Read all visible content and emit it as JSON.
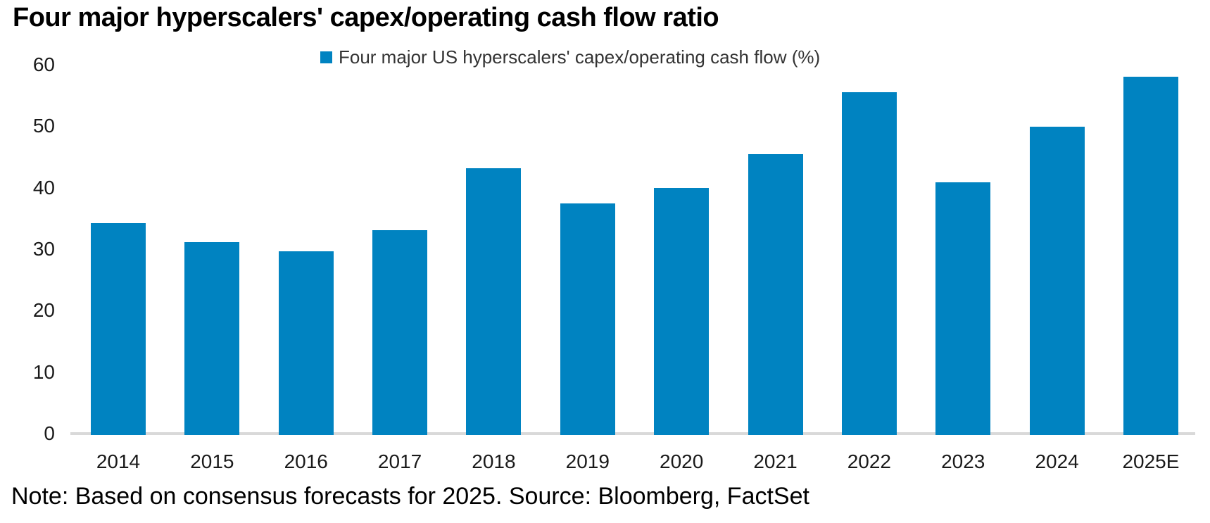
{
  "title": "Four major hyperscalers' capex/operating cash flow ratio",
  "legend": {
    "label": "Four major US hyperscalers' capex/operating cash flow (%)"
  },
  "note": "Note: Based on consensus forecasts for 2025. Source: Bloomberg, FactSet",
  "colors": {
    "bar": "#0083C1",
    "axis_line": "#D9D9D9",
    "tick_text": "#1A1A1A",
    "legend_text": "#333333",
    "title_text": "#000000"
  },
  "chart_data": {
    "type": "bar",
    "title": "Four major hyperscalers' capex/operating cash flow ratio",
    "legend_entries": [
      "Four major US hyperscalers' capex/operating cash flow (%)"
    ],
    "legend_position": "top-center",
    "categories": [
      "2014",
      "2015",
      "2016",
      "2017",
      "2018",
      "2019",
      "2020",
      "2021",
      "2022",
      "2023",
      "2024",
      "2025E"
    ],
    "values": [
      34.2,
      31.1,
      29.7,
      33.1,
      43.2,
      37.4,
      40.0,
      45.5,
      55.5,
      40.9,
      49.9,
      58.0
    ],
    "xlabel": "",
    "ylabel": "",
    "ylim": [
      0,
      60
    ],
    "yticks": [
      0,
      10,
      20,
      30,
      40,
      50,
      60
    ],
    "grid": false,
    "annotation": "Note: Based on consensus forecasts for 2025. Source: Bloomberg, FactSet"
  }
}
